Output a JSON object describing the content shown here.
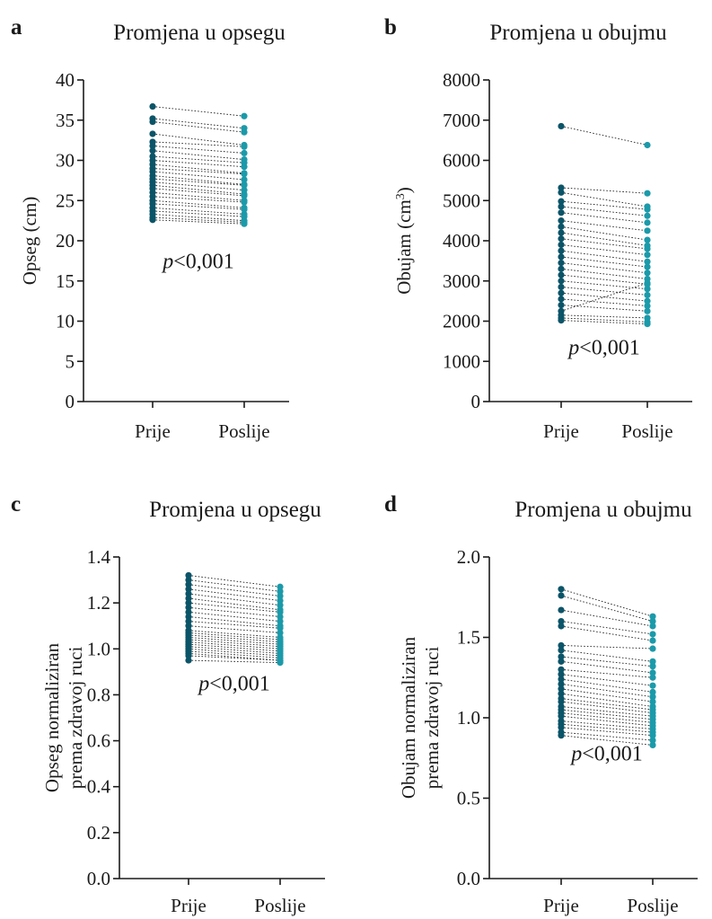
{
  "figure": {
    "colors": {
      "prije": "#0b5468",
      "poslije": "#1b9aaa"
    }
  },
  "chart_data": [
    {
      "panel": "a",
      "type": "line",
      "title": "Promjena u opsegu",
      "ylabel": [
        "Opseg (cm)"
      ],
      "categories": [
        "Prije",
        "Poslije"
      ],
      "ylim": [
        0,
        40
      ],
      "yticks": [
        0,
        5,
        10,
        15,
        20,
        25,
        30,
        35,
        40
      ],
      "decimals": 0,
      "annotation": {
        "prefix": "p",
        "text": "<0,001",
        "y": 17.5
      },
      "series": [
        {
          "values": [
            36.7,
            35.5
          ]
        },
        {
          "values": [
            35.2,
            34.0
          ]
        },
        {
          "values": [
            34.8,
            33.5
          ]
        },
        {
          "values": [
            33.3,
            31.9
          ]
        },
        {
          "values": [
            32.3,
            31.7
          ]
        },
        {
          "values": [
            31.8,
            30.9
          ]
        },
        {
          "values": [
            31.2,
            30.1
          ]
        },
        {
          "values": [
            30.5,
            29.7
          ]
        },
        {
          "values": [
            30.0,
            29.2
          ]
        },
        {
          "values": [
            29.5,
            28.4
          ]
        },
        {
          "values": [
            29.0,
            28.3
          ]
        },
        {
          "values": [
            28.6,
            27.6
          ]
        },
        {
          "values": [
            28.1,
            27.0
          ]
        },
        {
          "values": [
            27.7,
            26.9
          ]
        },
        {
          "values": [
            27.3,
            26.3
          ]
        },
        {
          "values": [
            26.9,
            25.8
          ]
        },
        {
          "values": [
            26.5,
            25.6
          ]
        },
        {
          "values": [
            26.0,
            25.0
          ]
        },
        {
          "values": [
            25.5,
            24.8
          ]
        },
        {
          "values": [
            25.0,
            24.1
          ]
        },
        {
          "values": [
            24.6,
            23.9
          ]
        },
        {
          "values": [
            24.1,
            23.3
          ]
        },
        {
          "values": [
            23.7,
            23.0
          ]
        },
        {
          "values": [
            23.3,
            22.5
          ]
        },
        {
          "values": [
            22.9,
            22.3
          ]
        },
        {
          "values": [
            22.6,
            22.1
          ]
        }
      ]
    },
    {
      "panel": "b",
      "type": "line",
      "title": "Promjena u obujmu",
      "ylabel": [
        "Obujam (cm",
        "3",
        ")"
      ],
      "categories": [
        "Prije",
        "Poslije"
      ],
      "ylim": [
        0,
        8000
      ],
      "yticks": [
        0,
        1000,
        2000,
        3000,
        4000,
        5000,
        6000,
        7000,
        8000
      ],
      "decimals": 0,
      "annotation": {
        "prefix": "p",
        "text": "<0,001",
        "y": 1350
      },
      "series": [
        {
          "values": [
            6850,
            6380
          ]
        },
        {
          "values": [
            5320,
            5180
          ]
        },
        {
          "values": [
            5200,
            4850
          ]
        },
        {
          "values": [
            4980,
            4780
          ]
        },
        {
          "values": [
            4850,
            4620
          ]
        },
        {
          "values": [
            4700,
            4450
          ]
        },
        {
          "values": [
            4500,
            4250
          ]
        },
        {
          "values": [
            4350,
            4020
          ]
        },
        {
          "values": [
            4200,
            3880
          ]
        },
        {
          "values": [
            4050,
            3800
          ]
        },
        {
          "values": [
            3900,
            3650
          ]
        },
        {
          "values": [
            3750,
            3480
          ]
        },
        {
          "values": [
            3600,
            3350
          ]
        },
        {
          "values": [
            3450,
            3200
          ]
        },
        {
          "values": [
            3300,
            3050
          ]
        },
        {
          "values": [
            3150,
            2920
          ]
        },
        {
          "values": [
            3000,
            2800
          ]
        },
        {
          "values": [
            2850,
            2650
          ]
        },
        {
          "values": [
            2700,
            2500
          ]
        },
        {
          "values": [
            2550,
            2380
          ]
        },
        {
          "values": [
            2400,
            2250
          ]
        },
        {
          "values": [
            2250,
            2950
          ]
        },
        {
          "values": [
            2150,
            2080
          ]
        },
        {
          "values": [
            2080,
            1980
          ]
        },
        {
          "values": [
            2020,
            1930
          ]
        }
      ]
    },
    {
      "panel": "c",
      "type": "line",
      "title": "Promjena u opsegu",
      "ylabel": [
        "Opseg normaliziran",
        "prema zdravoj ruci"
      ],
      "categories": [
        "Prije",
        "Poslije"
      ],
      "ylim": [
        0,
        1.4
      ],
      "yticks": [
        0,
        0.2,
        0.4,
        0.6,
        0.8,
        1.0,
        1.2,
        1.4
      ],
      "decimals": 1,
      "annotation": {
        "prefix": "p",
        "text": "<0,001",
        "y": 0.85
      },
      "series": [
        {
          "values": [
            1.32,
            1.27
          ]
        },
        {
          "values": [
            1.3,
            1.25
          ]
        },
        {
          "values": [
            1.28,
            1.23
          ]
        },
        {
          "values": [
            1.26,
            1.21
          ]
        },
        {
          "values": [
            1.24,
            1.19
          ]
        },
        {
          "values": [
            1.22,
            1.17
          ]
        },
        {
          "values": [
            1.2,
            1.16
          ]
        },
        {
          "values": [
            1.18,
            1.14
          ]
        },
        {
          "values": [
            1.16,
            1.12
          ]
        },
        {
          "values": [
            1.14,
            1.1
          ]
        },
        {
          "values": [
            1.12,
            1.09
          ]
        },
        {
          "values": [
            1.1,
            1.07
          ]
        },
        {
          "values": [
            1.08,
            1.05
          ]
        },
        {
          "values": [
            1.07,
            1.04
          ]
        },
        {
          "values": [
            1.06,
            1.03
          ]
        },
        {
          "values": [
            1.05,
            1.02
          ]
        },
        {
          "values": [
            1.04,
            1.01
          ]
        },
        {
          "values": [
            1.03,
            1.0
          ]
        },
        {
          "values": [
            1.02,
            0.99
          ]
        },
        {
          "values": [
            1.01,
            0.98
          ]
        },
        {
          "values": [
            1.0,
            0.97
          ]
        },
        {
          "values": [
            0.99,
            0.96
          ]
        },
        {
          "values": [
            0.98,
            0.95
          ]
        },
        {
          "values": [
            0.97,
            0.95
          ]
        },
        {
          "values": [
            0.95,
            0.94
          ]
        }
      ]
    },
    {
      "panel": "d",
      "type": "line",
      "title": "Promjena u obujmu",
      "ylabel": [
        "Obujam normaliziran",
        "prema zdravoj ruci"
      ],
      "categories": [
        "Prije",
        "Poslije"
      ],
      "ylim": [
        0,
        2.0
      ],
      "yticks": [
        0,
        0.5,
        1.0,
        1.5,
        2.0
      ],
      "decimals": 1,
      "annotation": {
        "prefix": "p",
        "text": "<0,001",
        "y": 0.78
      },
      "series": [
        {
          "values": [
            1.8,
            1.63
          ]
        },
        {
          "values": [
            1.76,
            1.6
          ]
        },
        {
          "values": [
            1.67,
            1.57
          ]
        },
        {
          "values": [
            1.6,
            1.52
          ]
        },
        {
          "values": [
            1.57,
            1.48
          ]
        },
        {
          "values": [
            1.45,
            1.43
          ]
        },
        {
          "values": [
            1.42,
            1.35
          ]
        },
        {
          "values": [
            1.38,
            1.32
          ]
        },
        {
          "values": [
            1.35,
            1.28
          ]
        },
        {
          "values": [
            1.3,
            1.25
          ]
        },
        {
          "values": [
            1.27,
            1.2
          ]
        },
        {
          "values": [
            1.24,
            1.16
          ]
        },
        {
          "values": [
            1.21,
            1.13
          ]
        },
        {
          "values": [
            1.18,
            1.1
          ]
        },
        {
          "values": [
            1.15,
            1.07
          ]
        },
        {
          "values": [
            1.12,
            1.05
          ]
        },
        {
          "values": [
            1.1,
            1.03
          ]
        },
        {
          "values": [
            1.07,
            1.01
          ]
        },
        {
          "values": [
            1.05,
            0.99
          ]
        },
        {
          "values": [
            1.03,
            0.97
          ]
        },
        {
          "values": [
            1.01,
            0.95
          ]
        },
        {
          "values": [
            0.98,
            0.93
          ]
        },
        {
          "values": [
            0.96,
            0.91
          ]
        },
        {
          "values": [
            0.94,
            0.89
          ]
        },
        {
          "values": [
            0.91,
            0.86
          ]
        },
        {
          "values": [
            0.89,
            0.83
          ]
        }
      ]
    }
  ]
}
